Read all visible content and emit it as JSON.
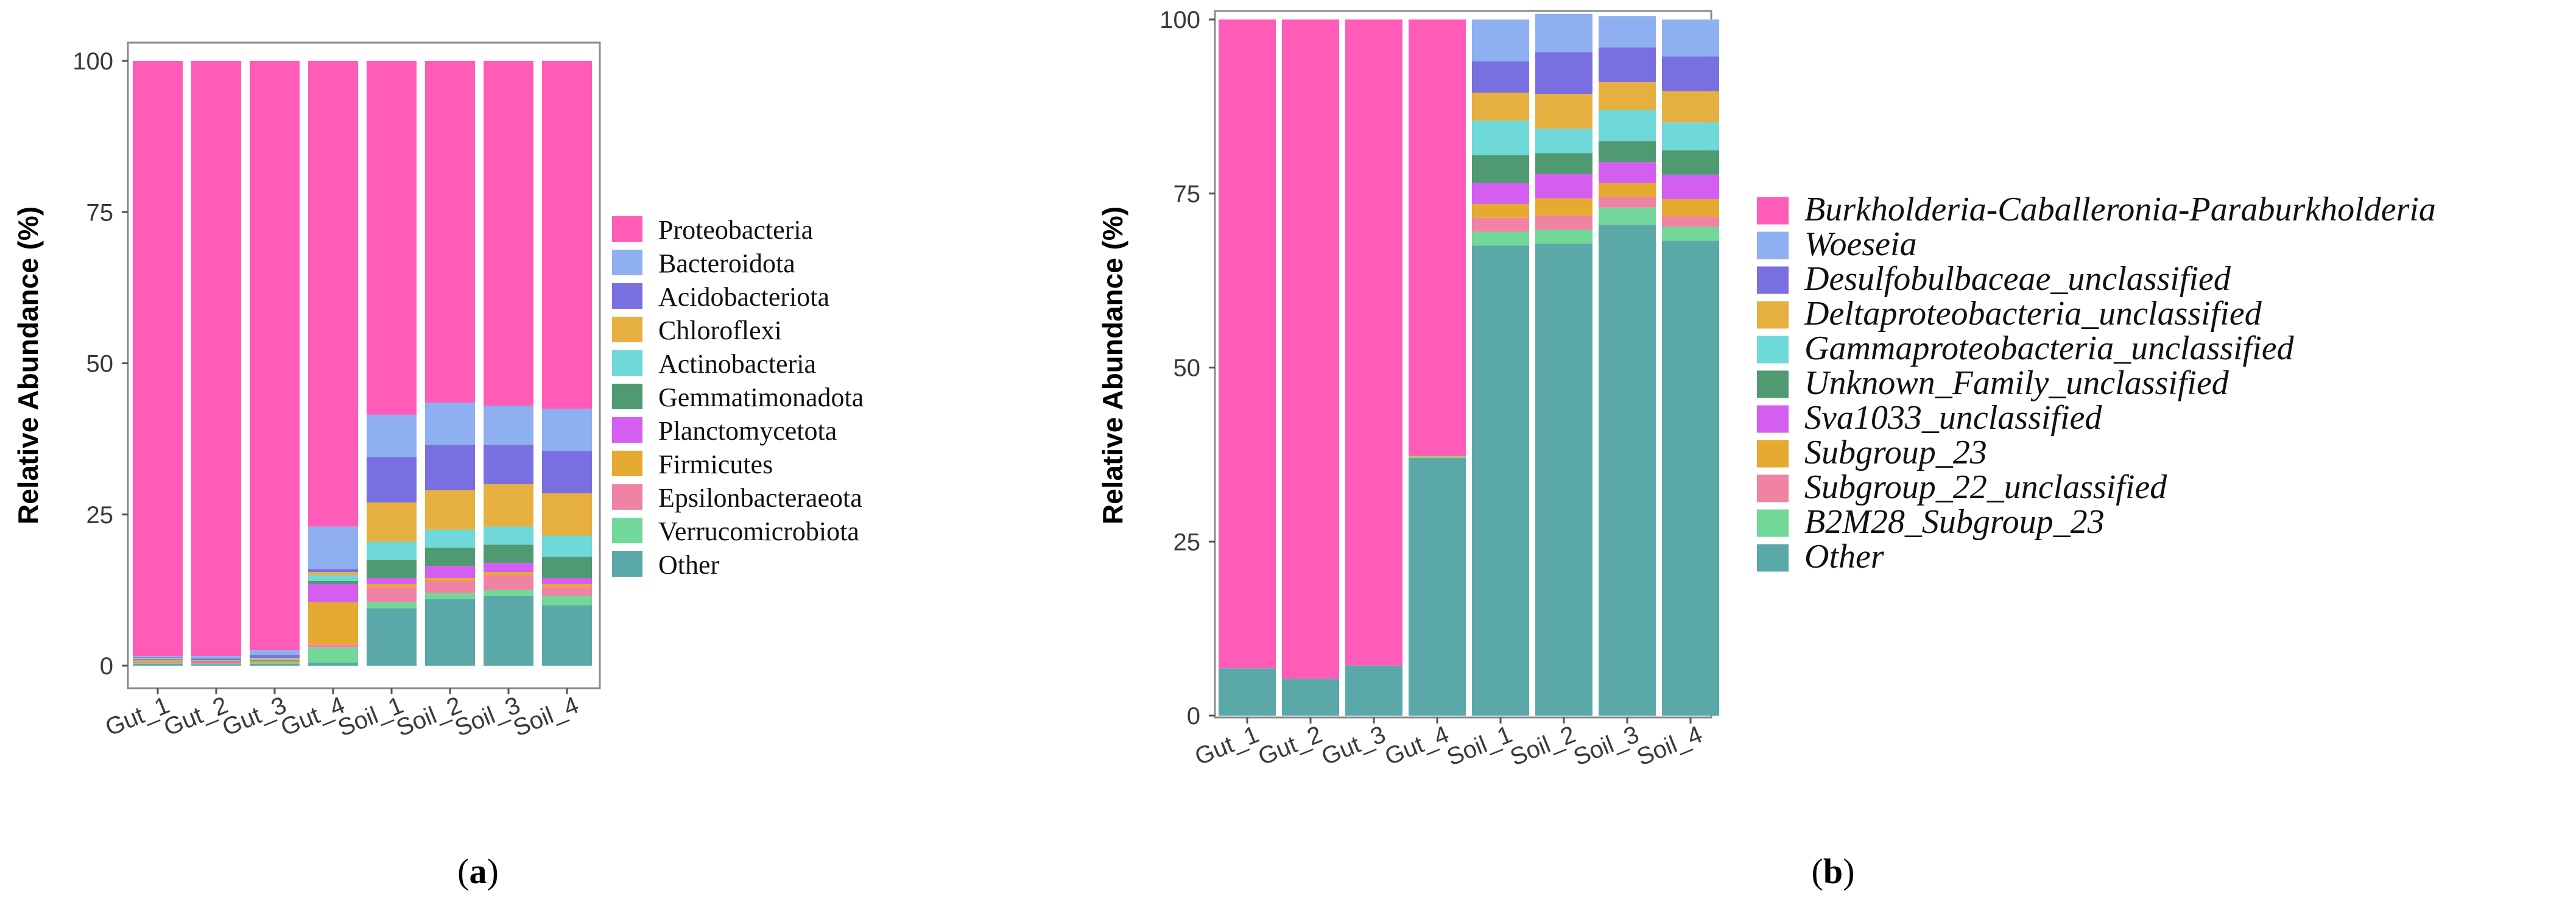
{
  "chart_data": [
    {
      "type": "bar",
      "stacked": true,
      "panel_label": "a",
      "ylabel": "Relative Abundance (%)",
      "xlabel": "",
      "ylim": [
        0,
        100
      ],
      "yticks": [
        "0",
        "25",
        "50",
        "75",
        "100"
      ],
      "categories": [
        "Gut_1",
        "Gut_2",
        "Gut_3",
        "Gut_4",
        "Soil_1",
        "Soil_2",
        "Soil_3",
        "Soil_4"
      ],
      "series": [
        {
          "name": "Other",
          "color": "#5aa8a8",
          "values": [
            0.3,
            0.2,
            0.3,
            0.5,
            9.5,
            11.0,
            11.5,
            10.0
          ]
        },
        {
          "name": "Verrucomicrobiota",
          "color": "#72d89a",
          "values": [
            0.1,
            0.1,
            0.1,
            2.5,
            1.0,
            1.0,
            1.0,
            1.5
          ]
        },
        {
          "name": "Epsilonbacteraeota",
          "color": "#f083a4",
          "values": [
            0.3,
            0.1,
            0.1,
            0.5,
            2.5,
            2.0,
            2.5,
            1.5
          ]
        },
        {
          "name": "Firmicutes",
          "color": "#e6aa30",
          "values": [
            0.2,
            0.1,
            0.2,
            7.0,
            0.5,
            0.5,
            0.5,
            0.5
          ]
        },
        {
          "name": "Planctomycetota",
          "color": "#d45ef0",
          "values": [
            0.1,
            0.1,
            0.1,
            3.0,
            1.0,
            2.0,
            1.5,
            1.0
          ]
        },
        {
          "name": "Gemmatimonadota",
          "color": "#4f9a70",
          "values": [
            0.1,
            0.1,
            0.1,
            0.5,
            3.0,
            3.0,
            3.0,
            3.5
          ]
        },
        {
          "name": "Actinobacteria",
          "color": "#6fd8d8",
          "values": [
            0.1,
            0.1,
            0.2,
            1.0,
            3.0,
            3.0,
            3.0,
            3.5
          ]
        },
        {
          "name": "Chloroflexi",
          "color": "#e6b040",
          "values": [
            0.1,
            0.1,
            0.2,
            0.5,
            6.5,
            6.5,
            7.0,
            7.0
          ]
        },
        {
          "name": "Acidobacteriota",
          "color": "#7a6fe0",
          "values": [
            0.1,
            0.3,
            0.5,
            0.5,
            7.5,
            7.5,
            6.5,
            7.0
          ]
        },
        {
          "name": "Bacteroidota",
          "color": "#8fb0f0",
          "values": [
            0.2,
            0.4,
            0.8,
            7.0,
            7.0,
            7.0,
            6.5,
            7.0
          ]
        },
        {
          "name": "Proteobacteria",
          "color": "#ff5cb8",
          "values": [
            98.4,
            98.4,
            97.4,
            77.0,
            58.5,
            56.5,
            57.0,
            57.5
          ]
        }
      ],
      "legend": [
        "Proteobacteria",
        "Bacteroidota",
        "Acidobacteriota",
        "Chloroflexi",
        "Actinobacteria",
        "Gemmatimonadota",
        "Planctomycetota",
        "Firmicutes",
        "Epsilonbacteraeota",
        "Verrucomicrobiota",
        "Other"
      ]
    },
    {
      "type": "bar",
      "stacked": true,
      "panel_label": "b",
      "ylabel": "Relative Abundance (%)",
      "xlabel": "",
      "ylim": [
        0,
        100
      ],
      "yticks": [
        "0",
        "25",
        "50",
        "75",
        "100"
      ],
      "categories": [
        "Gut_1",
        "Gut_2",
        "Gut_3",
        "Gut_4",
        "Soil_1",
        "Soil_2",
        "Soil_3",
        "Soil_4"
      ],
      "series": [
        {
          "name": "Other",
          "color": "#5aa8a8",
          "values": [
            6.8,
            5.3,
            7.2,
            37.0,
            67.5,
            67.8,
            70.5,
            68.2
          ]
        },
        {
          "name": "B2M28_Subgroup_23",
          "color": "#72d89a",
          "values": [
            0,
            0,
            0,
            0.2,
            2.0,
            2.0,
            2.5,
            2.0
          ]
        },
        {
          "name": "Subgroup_22_unclassified",
          "color": "#f083a4",
          "values": [
            0,
            0,
            0,
            0,
            2.0,
            2.0,
            1.5,
            1.5
          ]
        },
        {
          "name": "Subgroup_23",
          "color": "#e6aa30",
          "values": [
            0,
            0,
            0,
            0.1,
            2.0,
            2.5,
            2.0,
            2.5
          ]
        },
        {
          "name": "Sva1033_unclassified",
          "color": "#d45ef0",
          "values": [
            0,
            0,
            0,
            0,
            3.0,
            3.5,
            3.0,
            3.5
          ]
        },
        {
          "name": "Unknown_Family_unclassified",
          "color": "#4f9a70",
          "values": [
            0,
            0,
            0,
            0,
            4.0,
            3.0,
            3.0,
            3.5
          ]
        },
        {
          "name": "Gammaproteobacteria_unclassified",
          "color": "#6fd8d8",
          "values": [
            0,
            0,
            0,
            0,
            5.0,
            3.5,
            4.5,
            4.0
          ]
        },
        {
          "name": "Deltaproteobacteria_unclassified",
          "color": "#e6b040",
          "values": [
            0,
            0,
            0,
            0,
            4.0,
            5.0,
            4.0,
            4.5
          ]
        },
        {
          "name": "Desulfobulbaceae_unclassified",
          "color": "#7a6fe0",
          "values": [
            0,
            0,
            0,
            0,
            4.5,
            6.0,
            5.0,
            5.0
          ]
        },
        {
          "name": "Woeseia",
          "color": "#8fb0f0",
          "values": [
            0,
            0,
            0,
            0,
            6.0,
            5.5,
            4.5,
            5.3
          ]
        },
        {
          "name": "Burkholderia-Caballeronia-Paraburkholderia",
          "color": "#ff5cb8",
          "values": [
            93.2,
            94.7,
            92.8,
            62.7,
            0,
            0,
            0,
            0
          ]
        }
      ],
      "legend": [
        "Burkholderia-Caballeronia-Paraburkholderia",
        "Woeseia",
        "Desulfobulbaceae_unclassified",
        "Deltaproteobacteria_unclassified",
        "Gammaproteobacteria_unclassified",
        "Unknown_Family_unclassified",
        "Sva1033_unclassified",
        "Subgroup_23",
        "Subgroup_22_unclassified",
        "B2M28_Subgroup_23",
        "Other"
      ]
    }
  ]
}
